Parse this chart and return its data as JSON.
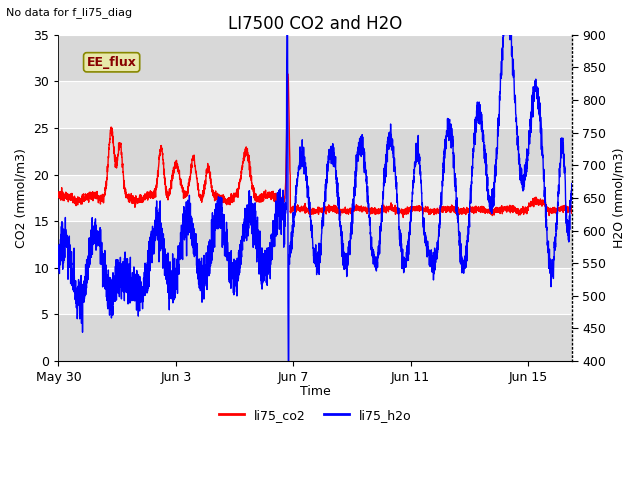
{
  "title": "LI7500 CO2 and H2O",
  "subtitle": "No data for f_li75_diag",
  "xlabel": "Time",
  "ylabel_left": "CO2 (mmol/m3)",
  "ylabel_right": "H2O (mmol/m3)",
  "xlim_days": [
    0,
    17.5
  ],
  "ylim_left": [
    0,
    35
  ],
  "ylim_right": [
    400,
    900
  ],
  "yticks_left": [
    0,
    5,
    10,
    15,
    20,
    25,
    30,
    35
  ],
  "yticks_right": [
    400,
    450,
    500,
    550,
    600,
    650,
    700,
    750,
    800,
    850,
    900
  ],
  "xtick_labels": [
    "May 30",
    "Jun 3",
    "Jun 7",
    "Jun 11",
    "Jun 15"
  ],
  "xtick_positions": [
    0,
    4,
    8,
    12,
    16
  ],
  "legend_labels": [
    "li75_co2",
    "li75_h2o"
  ],
  "legend_colors": [
    "red",
    "blue"
  ],
  "ee_flux_label": "EE_flux",
  "ee_flux_color": "#e8e8aa",
  "band_light": "#ebebeb",
  "band_dark": "#d8d8d8",
  "linewidth_co2": 1.0,
  "linewidth_h2o": 1.0,
  "title_fontsize": 12,
  "subtitle_fontsize": 8,
  "tick_fontsize": 9,
  "label_fontsize": 9
}
